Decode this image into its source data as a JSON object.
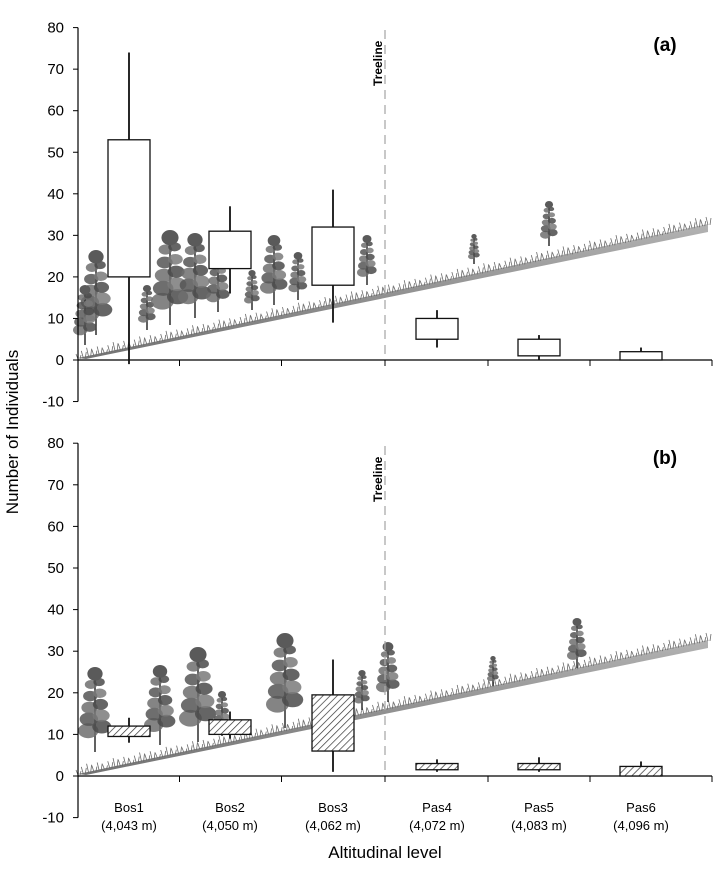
{
  "figure": {
    "ylabel": "Number of Individuals",
    "xlabel": "Altitudinal level",
    "treeline_label": "Treeline"
  },
  "chart_data": [
    {
      "type": "box",
      "panel_label": "(a)",
      "ylim": [
        -10,
        80
      ],
      "yticks": [
        -10,
        0,
        10,
        20,
        30,
        40,
        50,
        60,
        70,
        80
      ],
      "categories": [
        "Bos1",
        "Bos2",
        "Bos3",
        "Pas4",
        "Pas5",
        "Pas6"
      ],
      "treeline_between": [
        "Bos3",
        "Pas4"
      ],
      "fill": "open",
      "boxes": [
        {
          "category": "Bos1",
          "whisker_low": -1,
          "q1": 20,
          "q3": 53,
          "whisker_high": 74
        },
        {
          "category": "Bos2",
          "whisker_low": 16,
          "q1": 22,
          "q3": 31,
          "whisker_high": 37
        },
        {
          "category": "Bos3",
          "whisker_low": 9,
          "q1": 18,
          "q3": 32,
          "whisker_high": 41
        },
        {
          "category": "Pas4",
          "whisker_low": 3,
          "q1": 5,
          "q3": 10,
          "whisker_high": 12
        },
        {
          "category": "Pas5",
          "whisker_low": 0,
          "q1": 1,
          "q3": 5,
          "whisker_high": 6
        },
        {
          "category": "Pas6",
          "whisker_low": 0,
          "q1": 0,
          "q3": 2,
          "whisker_high": 3
        }
      ]
    },
    {
      "type": "box",
      "panel_label": "(b)",
      "ylim": [
        -10,
        80
      ],
      "yticks": [
        -10,
        0,
        10,
        20,
        30,
        40,
        50,
        60,
        70,
        80
      ],
      "categories": [
        "Bos1",
        "Bos2",
        "Bos3",
        "Pas4",
        "Pas5",
        "Pas6"
      ],
      "category_sublabels": [
        "(4,043 m)",
        "(4,050 m)",
        "(4,062 m)",
        "(4,072 m)",
        "(4,083 m)",
        "(4,096 m)"
      ],
      "treeline_between": [
        "Bos3",
        "Pas4"
      ],
      "fill": "hatched",
      "boxes": [
        {
          "category": "Bos1",
          "whisker_low": 8,
          "q1": 9.5,
          "q3": 12,
          "whisker_high": 14
        },
        {
          "category": "Bos2",
          "whisker_low": 9,
          "q1": 10,
          "q3": 13.5,
          "whisker_high": 15.5
        },
        {
          "category": "Bos3",
          "whisker_low": 1,
          "q1": 6,
          "q3": 19.5,
          "whisker_high": 28
        },
        {
          "category": "Pas4",
          "whisker_low": 1,
          "q1": 1.5,
          "q3": 3,
          "whisker_high": 4
        },
        {
          "category": "Pas5",
          "whisker_low": 1,
          "q1": 1.5,
          "q3": 3,
          "whisker_high": 4.5
        },
        {
          "category": "Pas6",
          "whisker_low": 0,
          "q1": 0,
          "q3": 2.3,
          "whisker_high": 3.5
        }
      ]
    }
  ]
}
